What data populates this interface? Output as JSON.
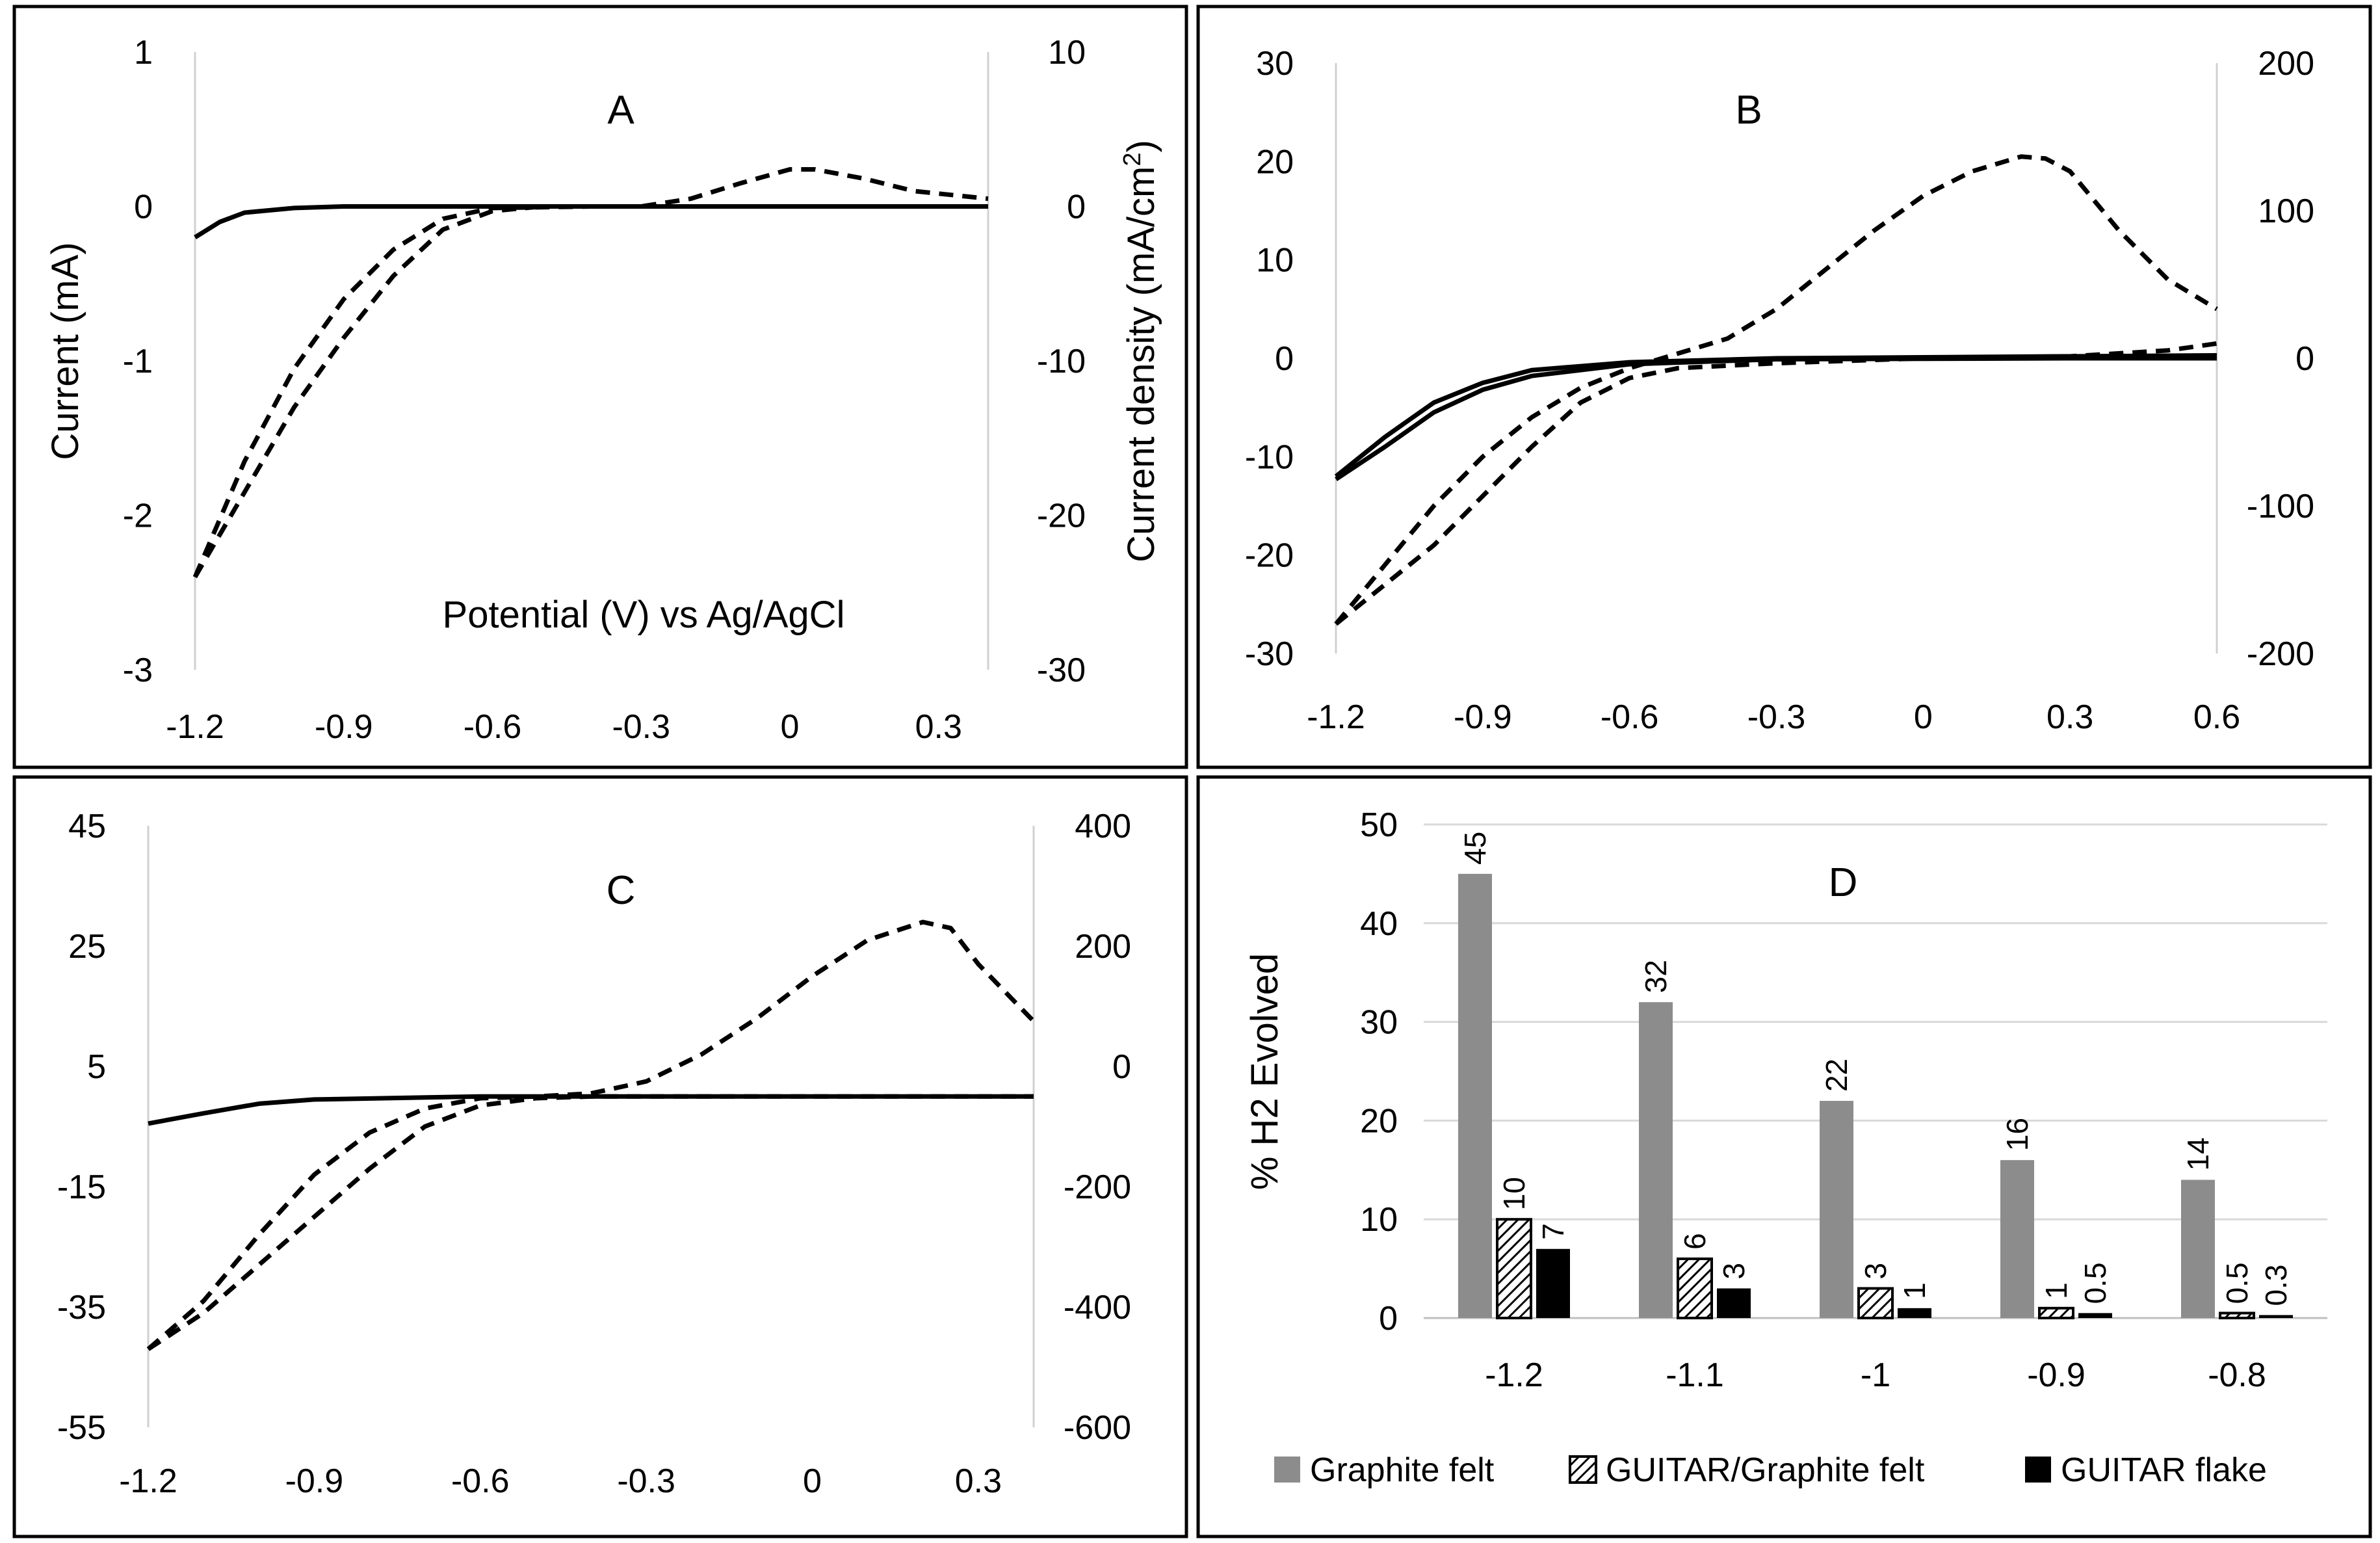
{
  "chart_data": [
    {
      "type": "line",
      "title": "A",
      "xlabel": "Potential (V) vs Ag/AgCl",
      "ylabel": "Current (mA)",
      "y2label": "Current density (mA/cm2)",
      "xlim": [
        -1.2,
        0.4
      ],
      "ylim": [
        -3,
        1
      ],
      "y2lim": [
        -30,
        10
      ],
      "xticks": [
        "-1.2",
        "-0.9",
        "-0.6",
        "-0.3",
        "0",
        "0.3"
      ],
      "yticks": [
        "1",
        "0",
        "-1",
        "-2",
        "-3"
      ],
      "y2ticks": [
        "10",
        "0",
        "-10",
        "-20",
        "-30"
      ],
      "grid": false,
      "series": [
        {
          "style": "solid",
          "color": "#000000",
          "points": [
            [
              -1.2,
              -0.2
            ],
            [
              -1.15,
              -0.1
            ],
            [
              -1.1,
              -0.04
            ],
            [
              -1.0,
              -0.01
            ],
            [
              -0.9,
              0
            ],
            [
              -0.6,
              0
            ],
            [
              -0.3,
              0
            ],
            [
              0,
              0
            ],
            [
              0.4,
              0
            ]
          ]
        },
        {
          "style": "dashed",
          "color": "#000000",
          "points": [
            [
              -1.2,
              -2.4
            ],
            [
              -1.1,
              -1.85
            ],
            [
              -1.0,
              -1.3
            ],
            [
              -0.9,
              -0.85
            ],
            [
              -0.8,
              -0.45
            ],
            [
              -0.7,
              -0.15
            ],
            [
              -0.6,
              -0.03
            ],
            [
              -0.5,
              0
            ],
            [
              -0.3,
              0
            ],
            [
              -0.2,
              0.05
            ],
            [
              -0.1,
              0.15
            ],
            [
              0,
              0.24
            ],
            [
              0.05,
              0.24
            ],
            [
              0.15,
              0.18
            ],
            [
              0.25,
              0.1
            ],
            [
              0.4,
              0.05
            ]
          ]
        },
        {
          "style": "dashed",
          "color": "#000000",
          "points": [
            [
              -1.2,
              -2.4
            ],
            [
              -1.1,
              -1.65
            ],
            [
              -1.0,
              -1.05
            ],
            [
              -0.9,
              -0.6
            ],
            [
              -0.8,
              -0.28
            ],
            [
              -0.7,
              -0.08
            ],
            [
              -0.6,
              -0.01
            ],
            [
              -0.4,
              0
            ],
            [
              0.4,
              0
            ]
          ]
        }
      ]
    },
    {
      "type": "line",
      "title": "B",
      "xlim": [
        -1.2,
        0.6
      ],
      "ylim": [
        -30,
        30
      ],
      "y2lim": [
        -200,
        200
      ],
      "xticks": [
        "-1.2",
        "-0.9",
        "-0.6",
        "-0.3",
        "0",
        "0.3",
        "0.6"
      ],
      "yticks": [
        "30",
        "20",
        "10",
        "0",
        "-10",
        "-20",
        "-30"
      ],
      "y2ticks": [
        "200",
        "100",
        "0",
        "-100",
        "-200"
      ],
      "grid": false,
      "series": [
        {
          "style": "solid",
          "color": "#000000",
          "points": [
            [
              -1.2,
              -12
            ],
            [
              -1.1,
              -8
            ],
            [
              -1.0,
              -4.5
            ],
            [
              -0.9,
              -2.5
            ],
            [
              -0.8,
              -1.2
            ],
            [
              -0.6,
              -0.4
            ],
            [
              -0.3,
              0
            ],
            [
              0.3,
              0.2
            ],
            [
              0.6,
              0.3
            ]
          ]
        },
        {
          "style": "solid",
          "color": "#000000",
          "points": [
            [
              -1.2,
              -12.3
            ],
            [
              -1.1,
              -9
            ],
            [
              -1.0,
              -5.5
            ],
            [
              -0.9,
              -3.2
            ],
            [
              -0.8,
              -1.8
            ],
            [
              -0.6,
              -0.6
            ],
            [
              -0.3,
              -0.1
            ],
            [
              0.3,
              0
            ],
            [
              0.6,
              0
            ]
          ]
        },
        {
          "style": "dashed",
          "color": "#000000",
          "points": [
            [
              -1.2,
              -27
            ],
            [
              -1.1,
              -21
            ],
            [
              -1.0,
              -15
            ],
            [
              -0.9,
              -10
            ],
            [
              -0.8,
              -6
            ],
            [
              -0.7,
              -3
            ],
            [
              -0.6,
              -1
            ],
            [
              -0.5,
              0.5
            ],
            [
              -0.4,
              2
            ],
            [
              -0.3,
              5
            ],
            [
              -0.2,
              9
            ],
            [
              -0.1,
              13
            ],
            [
              0,
              16.5
            ],
            [
              0.1,
              19
            ],
            [
              0.2,
              20.5
            ],
            [
              0.25,
              20.3
            ],
            [
              0.3,
              19
            ],
            [
              0.4,
              13
            ],
            [
              0.5,
              8
            ],
            [
              0.6,
              5
            ]
          ]
        },
        {
          "style": "dashed",
          "color": "#000000",
          "points": [
            [
              -1.2,
              -27
            ],
            [
              -1.1,
              -23
            ],
            [
              -1.0,
              -19
            ],
            [
              -0.9,
              -14
            ],
            [
              -0.8,
              -9
            ],
            [
              -0.7,
              -4.5
            ],
            [
              -0.6,
              -2
            ],
            [
              -0.5,
              -1
            ],
            [
              -0.3,
              -0.5
            ],
            [
              0,
              0
            ],
            [
              0.3,
              0.2
            ],
            [
              0.5,
              0.8
            ],
            [
              0.6,
              1.5
            ]
          ]
        }
      ]
    },
    {
      "type": "line",
      "title": "C",
      "xlim": [
        -1.2,
        0.4
      ],
      "ylim": [
        -55,
        45
      ],
      "y2lim": [
        -600,
        400
      ],
      "xticks": [
        "-1.2",
        "-0.9",
        "-0.6",
        "-0.3",
        "0",
        "0.3"
      ],
      "yticks": [
        "45",
        "25",
        "5",
        "-15",
        "-35",
        "-55"
      ],
      "y2ticks": [
        "400",
        "200",
        "0",
        "-200",
        "-400",
        "-600"
      ],
      "grid": false,
      "series": [
        {
          "style": "solid",
          "color": "#000000",
          "points": [
            [
              -1.2,
              -4.5
            ],
            [
              -1.1,
              -2.8
            ],
            [
              -1.0,
              -1.2
            ],
            [
              -0.9,
              -0.5
            ],
            [
              -0.6,
              0
            ],
            [
              0.4,
              0
            ]
          ]
        },
        {
          "style": "dashed",
          "color": "#000000",
          "points": [
            [
              -1.2,
              -42
            ],
            [
              -1.1,
              -34
            ],
            [
              -1.0,
              -23
            ],
            [
              -0.9,
              -13
            ],
            [
              -0.8,
              -6
            ],
            [
              -0.7,
              -2
            ],
            [
              -0.6,
              -0.3
            ],
            [
              -0.5,
              0
            ],
            [
              -0.4,
              0.5
            ],
            [
              -0.3,
              2.5
            ],
            [
              -0.2,
              7
            ],
            [
              -0.1,
              13
            ],
            [
              0,
              20
            ],
            [
              0.1,
              26
            ],
            [
              0.2,
              29
            ],
            [
              0.25,
              28
            ],
            [
              0.3,
              22
            ],
            [
              0.4,
              12.5
            ]
          ]
        },
        {
          "style": "dashed",
          "color": "#000000",
          "points": [
            [
              -1.2,
              -42
            ],
            [
              -1.1,
              -36
            ],
            [
              -1.0,
              -28
            ],
            [
              -0.9,
              -20
            ],
            [
              -0.8,
              -12
            ],
            [
              -0.7,
              -5
            ],
            [
              -0.6,
              -1.5
            ],
            [
              -0.5,
              -0.3
            ],
            [
              -0.4,
              0
            ],
            [
              0.4,
              0
            ]
          ]
        }
      ]
    },
    {
      "type": "bar",
      "title": "D",
      "ylabel": "% H2 Evolved",
      "ylim": [
        0,
        50
      ],
      "yticks": [
        "50",
        "40",
        "30",
        "20",
        "10",
        "0"
      ],
      "grid": true,
      "legend_position": "bottom",
      "categories": [
        "-1.2",
        "-1.1",
        "-1",
        "-0.9",
        "-0.8"
      ],
      "series": [
        {
          "name": "Graphite felt",
          "color": "#8c8c8c",
          "values": [
            45,
            32,
            22,
            16,
            14
          ],
          "labels": [
            "45",
            "32",
            "22",
            "16",
            "14"
          ]
        },
        {
          "name": "GUITAR/Graphite felt",
          "color": "hatched",
          "values": [
            10,
            6,
            3,
            1,
            0.5
          ],
          "labels": [
            "10",
            "6",
            "3",
            "1",
            "0.5"
          ]
        },
        {
          "name": "GUITAR flake",
          "color": "#000000",
          "values": [
            7,
            3,
            1,
            0.5,
            0.3
          ],
          "labels": [
            "7",
            "3",
            "1",
            "0.5",
            "0.3"
          ]
        }
      ]
    }
  ]
}
